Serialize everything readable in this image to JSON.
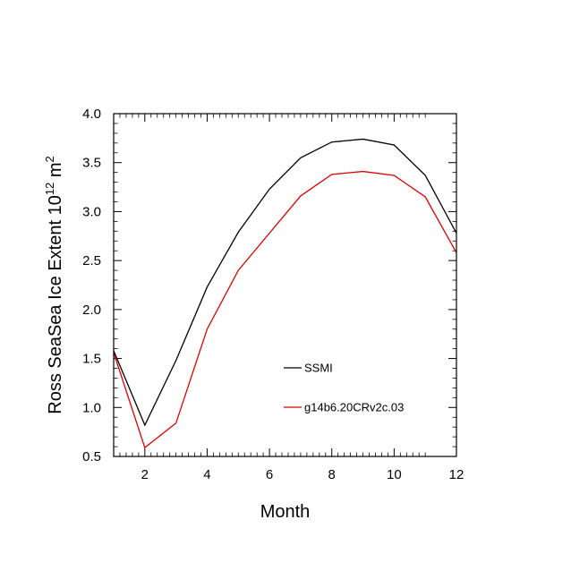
{
  "chart_data": {
    "type": "line",
    "title": "",
    "xlabel": "Month",
    "ylabel": {
      "main": "Ross SeaSea Ice Extent 10",
      "exp1": "12",
      "unit": " m",
      "exp2": "2"
    },
    "xlim": [
      1,
      12
    ],
    "ylim": [
      0.5,
      4.0
    ],
    "x": [
      1,
      2,
      3,
      4,
      5,
      6,
      7,
      8,
      9,
      10,
      11,
      12
    ],
    "x_ticks": [
      "2",
      "4",
      "6",
      "8",
      "10",
      "12"
    ],
    "y_ticks": [
      "0.5",
      "1.0",
      "1.5",
      "2.0",
      "2.5",
      "3.0",
      "3.5",
      "4.0"
    ],
    "legend_position": "center-right inside plot",
    "series": [
      {
        "name": "SSMI",
        "color": "#000000",
        "values": [
          1.58,
          0.82,
          1.48,
          2.23,
          2.79,
          3.23,
          3.55,
          3.71,
          3.74,
          3.68,
          3.37,
          2.78
        ]
      },
      {
        "name": "g14b6.20CRv2c.03",
        "color": "#e00000",
        "values": [
          1.56,
          0.59,
          0.84,
          1.8,
          2.4,
          2.78,
          3.16,
          3.38,
          3.41,
          3.37,
          3.15,
          2.58
        ]
      }
    ]
  }
}
